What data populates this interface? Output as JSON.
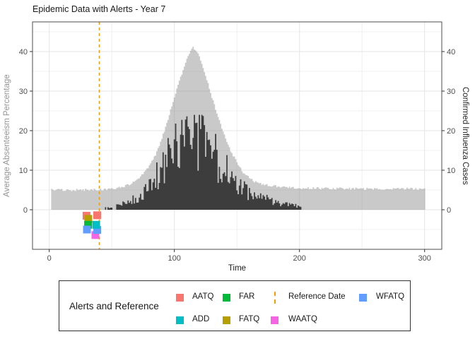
{
  "title": "Epidemic Data with Alerts - Year 7",
  "axes": {
    "x": {
      "title": "Time",
      "ticks": [
        0,
        100,
        200,
        300
      ],
      "minor_ticks": [
        50,
        150,
        250
      ],
      "range": [
        -13,
        314
      ]
    },
    "y_left": {
      "title": "Average Absenteeism Percentage",
      "ticks": [
        0,
        10,
        20,
        30,
        40
      ],
      "minor_ticks": [
        -5,
        5,
        15,
        25,
        35,
        45
      ],
      "range": [
        -10,
        47.5
      ]
    },
    "y_right": {
      "title": "Confirmed Influenza Cases",
      "ticks": [
        0,
        10,
        20,
        30,
        40
      ]
    }
  },
  "legend": {
    "title": "Alerts and Reference",
    "items": [
      {
        "label": "AATQ",
        "key": "square",
        "color": "#F8766D"
      },
      {
        "label": "ADD",
        "key": "square",
        "color": "#00BFC4"
      },
      {
        "label": "FAR",
        "key": "square",
        "color": "#00BA38"
      },
      {
        "label": "FATQ",
        "key": "square",
        "color": "#B79F00"
      },
      {
        "label": "Reference Date",
        "key": "dashed-line",
        "color": "#EFA008"
      },
      {
        "label": "WAATQ",
        "key": "square",
        "color": "#F564E3"
      },
      {
        "label": "WFATQ",
        "key": "square",
        "color": "#619CFF"
      }
    ]
  },
  "colors": {
    "light_area": "rgba(137,137,137,0.46)",
    "dark_area": "#3D3D3D",
    "reference_line": "#EFA008",
    "grid_major": "#E4E4E4",
    "grid_minor": "#F0F0F0",
    "panel_border": "#4D4D4D",
    "tick": "#333333",
    "tick_label": "#4D4D4D"
  },
  "chart_data": {
    "type": "area",
    "title": "Epidemic Data with Alerts - Year 7",
    "xlabel": "Time",
    "ylabel_left": "Average Absenteeism Percentage",
    "ylabel_right": "Confirmed Influenza Cases",
    "x_range": [
      0,
      300
    ],
    "y_range": [
      -10,
      47.5
    ],
    "grid": true,
    "legend_position": "bottom",
    "series": [
      {
        "name": "Average Absenteeism Percentage",
        "style": "area",
        "x_start": 2,
        "x_end": 300,
        "step": 1,
        "noise": {
          "mode": "absolute",
          "amp": 0.3
        },
        "keypoints": [
          [
            2,
            5
          ],
          [
            20,
            5
          ],
          [
            40,
            5.1
          ],
          [
            50,
            5.3
          ],
          [
            60,
            6
          ],
          [
            65,
            6.6
          ],
          [
            70,
            7.5
          ],
          [
            75,
            9
          ],
          [
            80,
            11
          ],
          [
            85,
            14
          ],
          [
            90,
            18
          ],
          [
            95,
            23
          ],
          [
            100,
            28.5
          ],
          [
            105,
            33.5
          ],
          [
            110,
            38
          ],
          [
            113,
            40.3
          ],
          [
            115,
            41
          ],
          [
            118,
            40
          ],
          [
            120,
            38.5
          ],
          [
            125,
            34
          ],
          [
            130,
            28.5
          ],
          [
            135,
            23.5
          ],
          [
            140,
            19
          ],
          [
            145,
            15
          ],
          [
            150,
            12
          ],
          [
            155,
            9.5
          ],
          [
            160,
            8
          ],
          [
            165,
            7
          ],
          [
            170,
            6.5
          ],
          [
            180,
            6
          ],
          [
            190,
            5.7
          ],
          [
            200,
            5.5
          ],
          [
            220,
            5.4
          ],
          [
            250,
            5.3
          ],
          [
            300,
            5.3
          ]
        ]
      },
      {
        "name": "Confirmed Influenza Cases",
        "style": "area",
        "x_start": 45,
        "x_end": 202,
        "step": 1,
        "noise": {
          "mode": "relative",
          "low": 0.5,
          "high": 1.5,
          "cap": 24,
          "sparse_below": 1,
          "sparse_p": 0.35
        },
        "spikes": {
          "111": 21,
          "118": 22,
          "123": 23.7
        },
        "keypoints": [
          [
            45,
            1.2
          ],
          [
            48,
            0.4
          ],
          [
            52,
            0.8
          ],
          [
            56,
            1.2
          ],
          [
            60,
            1.8
          ],
          [
            64,
            2.2
          ],
          [
            68,
            2.6
          ],
          [
            72,
            3.2
          ],
          [
            76,
            4
          ],
          [
            80,
            5.5
          ],
          [
            84,
            7
          ],
          [
            88,
            9
          ],
          [
            92,
            11
          ],
          [
            96,
            13
          ],
          [
            100,
            14.5
          ],
          [
            104,
            15
          ],
          [
            108,
            15.5
          ],
          [
            112,
            16
          ],
          [
            116,
            16.5
          ],
          [
            120,
            17
          ],
          [
            123,
            18
          ],
          [
            126,
            17
          ],
          [
            130,
            15.5
          ],
          [
            134,
            13.5
          ],
          [
            138,
            12
          ],
          [
            142,
            10.5
          ],
          [
            146,
            9
          ],
          [
            150,
            7.5
          ],
          [
            154,
            6
          ],
          [
            158,
            5
          ],
          [
            162,
            4.2
          ],
          [
            166,
            3.6
          ],
          [
            170,
            3.2
          ],
          [
            174,
            2.8
          ],
          [
            178,
            2.4
          ],
          [
            182,
            2
          ],
          [
            186,
            1.6
          ],
          [
            190,
            1.3
          ],
          [
            194,
            1.1
          ],
          [
            198,
            1
          ],
          [
            202,
            0.6
          ]
        ]
      }
    ],
    "alerts": [
      {
        "name": "AATQ",
        "color": "#F8766D",
        "points": [
          [
            29.8,
            -1.5
          ],
          [
            38.3,
            -1.4
          ]
        ]
      },
      {
        "name": "FATQ",
        "color": "#B79F00",
        "points": [
          [
            31.2,
            -2.3
          ]
        ]
      },
      {
        "name": "FAR",
        "color": "#00BA38",
        "points": [
          [
            31.0,
            -3.8
          ]
        ]
      },
      {
        "name": "WAATQ",
        "color": "#F564E3",
        "points": [
          [
            36.9,
            -6.4
          ]
        ]
      },
      {
        "name": "WFATQ",
        "color": "#619CFF",
        "points": [
          [
            30.1,
            -5.0
          ],
          [
            38.3,
            -5.1
          ]
        ]
      },
      {
        "name": "ADD",
        "color": "#00BFC4",
        "points": [
          [
            37.5,
            -3.8
          ]
        ]
      }
    ],
    "reference_date": {
      "x": 40,
      "label": "Reference Date",
      "color": "#EFA008",
      "linetype": "dashed"
    }
  }
}
